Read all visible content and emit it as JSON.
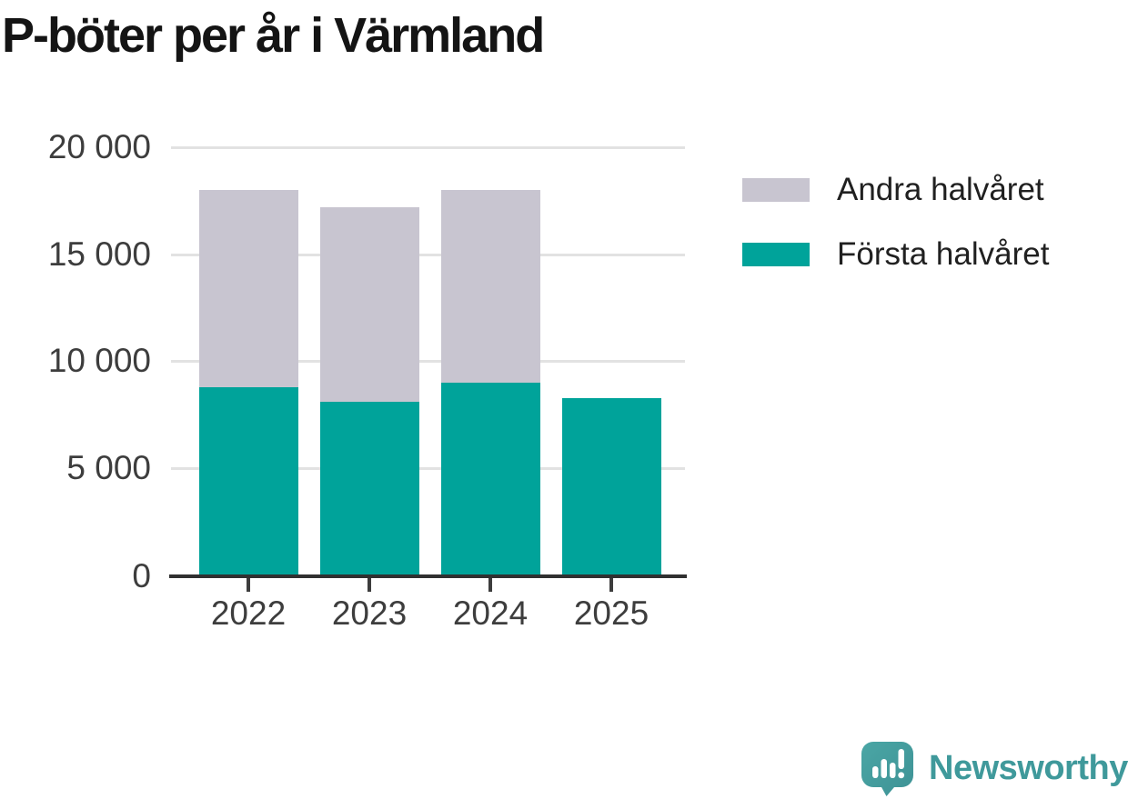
{
  "title": "P-böter per år i Värmland",
  "colors": {
    "first_half": "#00a39a",
    "second_half": "#c8c5d0",
    "grid": "#e2e2e2",
    "axis": "#303030",
    "tick_label": "#3d3d3d",
    "title_text": "#141414",
    "logo_teal": "#3f999b"
  },
  "legend": {
    "items": [
      {
        "label": "Andra halvåret",
        "color": "#c8c5d0"
      },
      {
        "label": "Första halvåret",
        "color": "#00a39a"
      }
    ]
  },
  "chart_data": {
    "type": "bar",
    "stacked": true,
    "title": "P-böter per år i Värmland",
    "categories": [
      "2022",
      "2023",
      "2024",
      "2025"
    ],
    "series": [
      {
        "name": "Första halvåret",
        "color": "#00a39a",
        "values": [
          8750,
          8100,
          9000,
          8250
        ]
      },
      {
        "name": "Andra halvåret",
        "color": "#c8c5d0",
        "values": [
          9250,
          9100,
          9000,
          null
        ]
      }
    ],
    "totals": [
      18000,
      17200,
      18000,
      8250
    ],
    "xlabel": "",
    "ylabel": "",
    "ylim": [
      0,
      20000
    ],
    "yticks": [
      0,
      5000,
      10000,
      15000,
      20000
    ],
    "ytick_labels": [
      "0",
      "5 000",
      "10 000",
      "15 000",
      "20 000"
    ],
    "grid": "horizontal",
    "legend_position": "right"
  },
  "logo": {
    "text": "Newsworthy",
    "icon": "newsworthy-speech-bubble-chart-icon"
  }
}
